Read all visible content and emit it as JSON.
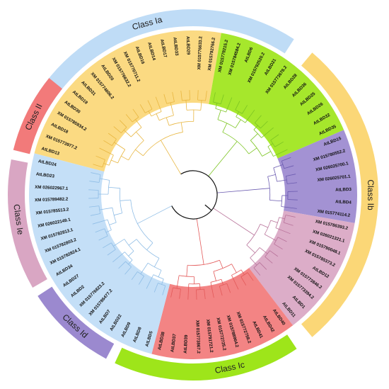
{
  "colors": {
    "Ia": "#bfdcf6",
    "Ib": "#fbd777",
    "Ic": "#9ee51a",
    "Id": "#9b89cf",
    "Ie": "#d9a6c3",
    "II": "#f27a7a"
  },
  "classes": [
    {
      "id": "Ia",
      "name": "Class Ia"
    },
    {
      "id": "Ib",
      "name": "Class Ib"
    },
    {
      "id": "Ic",
      "name": "Class Ic"
    },
    {
      "id": "Id",
      "name": "Class Id"
    },
    {
      "id": "Ie",
      "name": "Class Ie"
    },
    {
      "id": "II",
      "name": "Class II"
    }
  ],
  "leaves": [
    {
      "label": "AtLBD13",
      "cls": "Ib"
    },
    {
      "label": "XM 015773977.2",
      "cls": "Ib"
    },
    {
      "label": "AtLBD18",
      "cls": "Ib"
    },
    {
      "label": "XM 015785934.2",
      "cls": "Ib"
    },
    {
      "label": "AtLBD30",
      "cls": "Ib"
    },
    {
      "label": "AtLBD19",
      "cls": "Ib"
    },
    {
      "label": "AtLBD31",
      "cls": "Ib"
    },
    {
      "label": "XM 015774606.2",
      "cls": "Ib"
    },
    {
      "label": "AtLBD20",
      "cls": "Ib"
    },
    {
      "label": "XM 015776632.2",
      "cls": "Ib"
    },
    {
      "label": "XM 015770711.2",
      "cls": "Ib"
    },
    {
      "label": "AtLBD16",
      "cls": "Ib"
    },
    {
      "label": "AtLBD14",
      "cls": "Ib"
    },
    {
      "label": "AtLBD17",
      "cls": "Ib"
    },
    {
      "label": "AtLBD33",
      "cls": "Ib"
    },
    {
      "label": "AtLBD29",
      "cls": "Ib"
    },
    {
      "label": "XM 015776633.2",
      "cls": "Ib"
    },
    {
      "label": "XM 015792766.2",
      "cls": "Ib"
    },
    {
      "label": "XM 015779215.2",
      "cls": "Ic"
    },
    {
      "label": "XM 015784584.2",
      "cls": "Ic"
    },
    {
      "label": "AtLBD6",
      "cls": "Ic"
    },
    {
      "label": "XM 015792520.2",
      "cls": "Ic"
    },
    {
      "label": "AtLBD21",
      "cls": "Ic"
    },
    {
      "label": "XM 015773678.2",
      "cls": "Ic"
    },
    {
      "label": "AtLBD28",
      "cls": "Ic"
    },
    {
      "label": "AtLBD36",
      "cls": "Ic"
    },
    {
      "label": "AtLBD25",
      "cls": "Ic"
    },
    {
      "label": "AtLBD26",
      "cls": "Ic"
    },
    {
      "label": "AtLBD32",
      "cls": "Ic"
    },
    {
      "label": "AtLBD35",
      "cls": "Ic"
    },
    {
      "label": "AtLBD15",
      "cls": "Id"
    },
    {
      "label": "XM 015780552.2",
      "cls": "Id"
    },
    {
      "label": "XM 026025700.1",
      "cls": "Id"
    },
    {
      "label": "XM 026025701.1",
      "cls": "Id"
    },
    {
      "label": "AtLBD3",
      "cls": "Id"
    },
    {
      "label": "AtLBD4",
      "cls": "Id"
    },
    {
      "label": "XM 015774114.2",
      "cls": "Id"
    },
    {
      "label": "XM 015786393.2",
      "cls": "Ie"
    },
    {
      "label": "XM 026021321.1",
      "cls": "Ie"
    },
    {
      "label": "XM 015790048.1",
      "cls": "Ie"
    },
    {
      "label": "XM 015785373.2",
      "cls": "Ie"
    },
    {
      "label": "AtLBD12",
      "cls": "Ie"
    },
    {
      "label": "XM 015773846.2",
      "cls": "Ie"
    },
    {
      "label": "XM 015773394.2",
      "cls": "Ie"
    },
    {
      "label": "AtLBD1",
      "cls": "Ie"
    },
    {
      "label": "AtLBD11",
      "cls": "Ie"
    },
    {
      "label": "AtLBD40",
      "cls": "II"
    },
    {
      "label": "AtLBD42",
      "cls": "II"
    },
    {
      "label": "AtLBD41",
      "cls": "II"
    },
    {
      "label": "XM 015772758.2",
      "cls": "II"
    },
    {
      "label": "XM 015788964.2",
      "cls": "II"
    },
    {
      "label": "XM 015772725.2",
      "cls": "II"
    },
    {
      "label": "XM 015791721.2",
      "cls": "II"
    },
    {
      "label": "XM 015773867.2",
      "cls": "II"
    },
    {
      "label": "AtLBD39",
      "cls": "II"
    },
    {
      "label": "AtLBD37",
      "cls": "II"
    },
    {
      "label": "AtLBD38",
      "cls": "II"
    },
    {
      "label": "AtLBD5",
      "cls": "Ia"
    },
    {
      "label": "AtLBD8",
      "cls": "Ia"
    },
    {
      "label": "AtLBD9",
      "cls": "Ia"
    },
    {
      "label": "AtLBD22",
      "cls": "Ia"
    },
    {
      "label": "AtLBD7",
      "cls": "Ia"
    },
    {
      "label": "XM 015786477.2",
      "cls": "Ia"
    },
    {
      "label": "XM 015776823.2",
      "cls": "Ia"
    },
    {
      "label": "AtLBD2",
      "cls": "Ia"
    },
    {
      "label": "AtLBD27",
      "cls": "Ia"
    },
    {
      "label": "AtLBD34",
      "cls": "Ia"
    },
    {
      "label": "XM 015782824.1",
      "cls": "Ia"
    },
    {
      "label": "XM 015782803.2",
      "cls": "Ia"
    },
    {
      "label": "XM 015782813.1",
      "cls": "Ia"
    },
    {
      "label": "XM 026022149.1",
      "cls": "Ia"
    },
    {
      "label": "XM 015785513.2",
      "cls": "Ia"
    },
    {
      "label": "XM 015789482.2",
      "cls": "Ia"
    },
    {
      "label": "XM 026022967.1",
      "cls": "Ia"
    },
    {
      "label": "AtLBD23",
      "cls": "Ia"
    },
    {
      "label": "AtLBD24",
      "cls": "Ia"
    }
  ]
}
